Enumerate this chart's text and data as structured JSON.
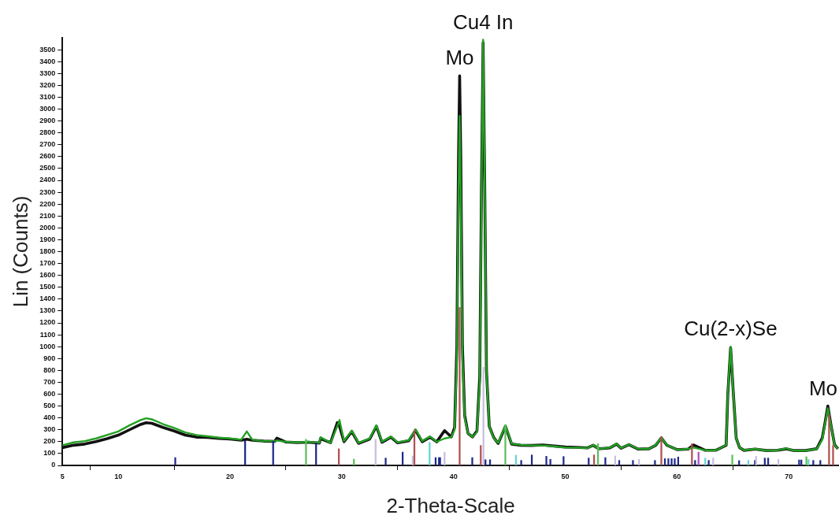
{
  "chart_data": {
    "type": "line",
    "xlabel": "2-Theta-Scale",
    "ylabel": "Lin (Counts)",
    "x": [
      5,
      6,
      7,
      8,
      9,
      10,
      11,
      12,
      12.5,
      13,
      14,
      15,
      16,
      17,
      18,
      19,
      20,
      21,
      21.5,
      22,
      23,
      24,
      24.2,
      25,
      26,
      27,
      28,
      28.1,
      29,
      29.6,
      29.8,
      30.2,
      30.9,
      31.5,
      32.5,
      33.1,
      33.6,
      34.4,
      35,
      36,
      36.6,
      37.2,
      37.9,
      38.5,
      39.2,
      39.8,
      40.1,
      40.3,
      40.45,
      40.55,
      40.65,
      40.8,
      41,
      41.3,
      41.7,
      42.1,
      42.35,
      42.5,
      42.65,
      42.8,
      42.95,
      43.2,
      43.6,
      44,
      44.65,
      45.2,
      46,
      47,
      48,
      49,
      50,
      51,
      52,
      52.5,
      53,
      54,
      54.6,
      55,
      55.7,
      56.5,
      57.5,
      58.1,
      58.6,
      59.1,
      60,
      61,
      61.5,
      62.5,
      63.5,
      64.4,
      64.55,
      64.8,
      65.05,
      65.3,
      65.6,
      66,
      67,
      68,
      69,
      69.8,
      70.5,
      71.5,
      72.5,
      73,
      73.25,
      73.5,
      73.8,
      74.1,
      74.4
    ],
    "series": [
      {
        "color": "#111111",
        "values": [
          150,
          170,
          180,
          200,
          225,
          255,
          300,
          345,
          360,
          355,
          320,
          290,
          255,
          238,
          235,
          228,
          222,
          212,
          220,
          212,
          205,
          202,
          230,
          197,
          192,
          196,
          188,
          225,
          192,
          360,
          330,
          200,
          285,
          186,
          222,
          330,
          195,
          238,
          190,
          208,
          295,
          200,
          238,
          198,
          293,
          240,
          320,
          1000,
          2600,
          3280,
          2600,
          1000,
          420,
          270,
          240,
          290,
          750,
          2300,
          3560,
          2300,
          800,
          330,
          235,
          185,
          330,
          180,
          170,
          168,
          172,
          163,
          155,
          152,
          148,
          170,
          140,
          148,
          180,
          145,
          175,
          138,
          140,
          170,
          232,
          170,
          133,
          138,
          172,
          128,
          128,
          170,
          600,
          990,
          600,
          230,
          150,
          127,
          138,
          125,
          128,
          140,
          125,
          125,
          140,
          230,
          360,
          500,
          330,
          175,
          140
        ]
      },
      {
        "color": "#22a022",
        "values": [
          170,
          194,
          205,
          227,
          256,
          286,
          337,
          382,
          397,
          388,
          348,
          315,
          278,
          256,
          245,
          234,
          227,
          216,
          286,
          216,
          205,
          205,
          210,
          199,
          194,
          199,
          190,
          238,
          190,
          330,
          382,
          205,
          293,
          190,
          227,
          337,
          199,
          243,
          194,
          212,
          304,
          205,
          243,
          199,
          227,
          238,
          300,
          900,
          2300,
          2943,
          2300,
          900,
          400,
          270,
          240,
          280,
          700,
          2200,
          3584,
          2300,
          800,
          330,
          230,
          190,
          337,
          183,
          172,
          168,
          168,
          161,
          150,
          150,
          146,
          172,
          139,
          150,
          183,
          146,
          177,
          139,
          139,
          172,
          234,
          172,
          132,
          139,
          150,
          128,
          128,
          172,
          600,
          1000,
          600,
          230,
          150,
          128,
          139,
          124,
          128,
          143,
          124,
          124,
          139,
          216,
          348,
          481,
          326,
          172,
          139
        ]
      },
      {
        "type": "bar",
        "color": "#1f2a8a",
        "x": [
          15.1,
          21.35,
          23.86,
          27.7,
          33.93,
          35.45,
          38.4,
          38.7,
          38.8,
          41.68,
          42.86,
          43.27,
          46.06,
          47.01,
          48.31,
          48.67,
          49.85,
          52.1,
          53.59,
          54.83,
          56.06,
          58.03,
          58.92,
          59.23,
          59.52,
          59.8,
          60.11,
          61.62,
          62.84,
          65.56,
          66.98,
          67.86,
          68.16,
          70.93,
          71.13,
          72.2,
          72.83
        ],
        "values": [
          66,
          205,
          205,
          190,
          62,
          112,
          66,
          66,
          66,
          66,
          48,
          48,
          42,
          88,
          77,
          51,
          75,
          62,
          66,
          42,
          42,
          42,
          57,
          57,
          57,
          57,
          71,
          42,
          42,
          40,
          42,
          62,
          62,
          46,
          46,
          42,
          42
        ]
      },
      {
        "type": "bar",
        "color": "#b05050",
        "x": [
          29.74,
          36.5,
          40.55,
          42.44,
          52.58,
          58.6,
          61.34,
          73.61,
          73.97
        ],
        "values": [
          140,
          298,
          1330,
          168,
          88,
          243,
          183,
          425,
          168
        ]
      },
      {
        "type": "bar",
        "color": "#5cc05c",
        "x": [
          26.8,
          31.09,
          44.64,
          52.93,
          64.95,
          71.58
        ],
        "values": [
          220,
          53,
          338,
          183,
          88,
          73
        ]
      },
      {
        "type": "bar",
        "color": "#c8bfe0",
        "x": [
          33.03,
          36.35,
          39.2,
          42.68,
          54.47,
          56.6,
          63.24,
          67.08,
          69.08
        ],
        "values": [
          220,
          80,
          112,
          827,
          80,
          51,
          62,
          77,
          51
        ]
      },
      {
        "type": "bar",
        "color": "#66d4d4",
        "x": [
          37.86,
          45.59,
          62.53,
          66.39,
          71.77
        ],
        "values": [
          194,
          86,
          62,
          42,
          51
        ]
      },
      {
        "type": "bar",
        "color": "#b050c0",
        "x": [
          61.93
        ],
        "values": [
          112
        ]
      }
    ],
    "xlim": [
      5,
      74.5
    ],
    "xticks": [
      5,
      10,
      20,
      30,
      40,
      50,
      60,
      70
    ],
    "ylim": [
      0,
      3600
    ],
    "yticks": [
      0,
      100,
      200,
      300,
      400,
      500,
      600,
      700,
      800,
      900,
      1000,
      1100,
      1200,
      1300,
      1400,
      1500,
      1600,
      1700,
      1800,
      1900,
      2000,
      2100,
      2200,
      2300,
      2400,
      2500,
      2600,
      2700,
      2800,
      2900,
      3000,
      3100,
      3200,
      3300,
      3400,
      3500
    ],
    "annotations": [
      {
        "text": "Mo",
        "x": 40.55,
        "y": 3280
      },
      {
        "text": "Cu4 In",
        "x": 42.65,
        "y": 3584
      },
      {
        "text": "Cu(2-x)Se",
        "x": 64.8,
        "y": 1000
      },
      {
        "text": "Mo",
        "x": 73.5,
        "y": 500
      }
    ],
    "grid": false,
    "legend": false,
    "marker": "none",
    "line_style": "solid"
  }
}
